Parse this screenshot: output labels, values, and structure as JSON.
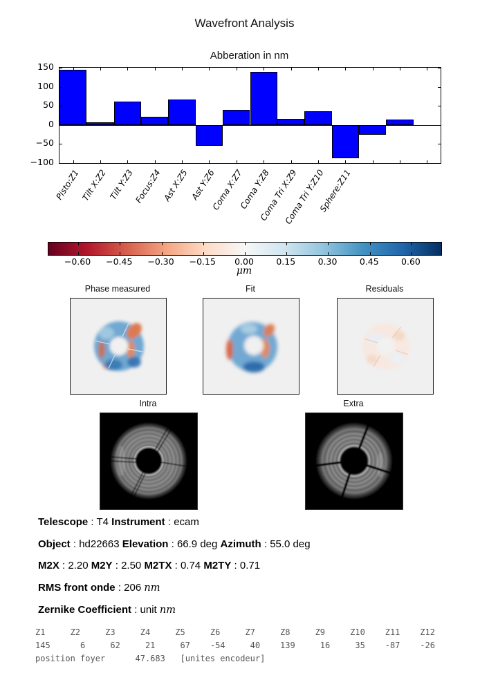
{
  "page_title": "Wavefront Analysis",
  "chart_data": {
    "type": "bar",
    "title": "Abberation in nm",
    "categories": [
      "Pisto:Z1",
      "Tilt X:Z2",
      "Tilt Y:Z3",
      "Focus:Z4",
      "Ast X:Z5",
      "Ast Y:Z6",
      "Coma X:Z7",
      "Coma Y:Z8",
      "Coma Tri X:Z9",
      "Coma Tri Y:Z10",
      "Sphere:Z11"
    ],
    "values": [
      145,
      6,
      62,
      21,
      67,
      -54,
      40,
      139,
      16,
      35,
      -87,
      -26,
      14
    ],
    "xlabel": "",
    "ylabel": "",
    "ylim": [
      -100,
      150
    ],
    "yticks": [
      150,
      100,
      50,
      0,
      -50,
      -100
    ],
    "x_slots": 14,
    "bar_color": "#0000ff",
    "grid": false
  },
  "colorbar": {
    "label": "μm",
    "ticks": [
      "−0.60",
      "−0.45",
      "−0.30",
      "−0.15",
      "0.00",
      "0.15",
      "0.30",
      "0.45",
      "0.60"
    ],
    "vmin": -0.7071,
    "vmax": 0.7071,
    "colormap_ends": [
      "#67001f",
      "#053061"
    ]
  },
  "phase_maps": [
    {
      "title": "Phase measured"
    },
    {
      "title": "Fit"
    },
    {
      "title": "Residuals"
    }
  ],
  "images": [
    {
      "title": "Intra"
    },
    {
      "title": "Extra"
    }
  ],
  "info_lines": [
    {
      "segments": [
        {
          "t": "Telescope",
          "bold": true
        },
        {
          "t": " : T4 "
        },
        {
          "t": "Instrument",
          "bold": true
        },
        {
          "t": " : ecam"
        }
      ]
    },
    {
      "segments": [
        {
          "t": "Object",
          "bold": true
        },
        {
          "t": " : hd22663 "
        },
        {
          "t": "Elevation",
          "bold": true
        },
        {
          "t": " : 66.9 deg "
        },
        {
          "t": "Azimuth",
          "bold": true
        },
        {
          "t": " : 55.0 deg"
        }
      ]
    },
    {
      "segments": [
        {
          "t": "M2X",
          "bold": true
        },
        {
          "t": " : 2.20 "
        },
        {
          "t": "M2Y",
          "bold": true
        },
        {
          "t": " : 2.50 "
        },
        {
          "t": "M2TX",
          "bold": true
        },
        {
          "t": " : 0.74 "
        },
        {
          "t": "M2TY",
          "bold": true
        },
        {
          "t": " : 0.71"
        }
      ]
    },
    {
      "segments": [
        {
          "t": "RMS front onde",
          "bold": true
        },
        {
          "t": " : 206 "
        },
        {
          "t": "nm",
          "math": true
        }
      ]
    },
    {
      "segments": [
        {
          "t": "Zernike Coefficient",
          "bold": true
        },
        {
          "t": " : unit "
        },
        {
          "t": "nm",
          "math": true
        }
      ]
    }
  ],
  "mono_lines": [
    "Z1     Z2     Z3     Z4     Z5     Z6     Z7     Z8     Z9     Z10    Z11    Z12",
    "145      6     62     21     67    -54     40    139     16     35    -87    -26",
    "position foyer      47.683   [unites encodeur]"
  ]
}
